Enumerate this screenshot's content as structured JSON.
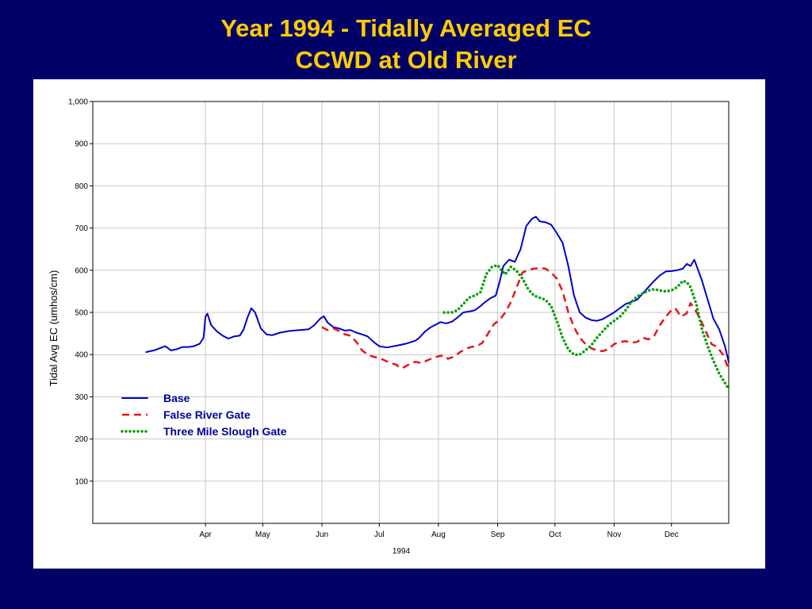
{
  "title": {
    "line1": "Year 1994 - Tidally Averaged EC",
    "line2": "CCWD at Old River"
  },
  "colors": {
    "background": "#000066",
    "title": "#FFCC00",
    "legend_text": "#000099",
    "grid": "#c8c8c8"
  },
  "chart_data": {
    "type": "line",
    "title": "",
    "xlabel": "1994",
    "ylabel": "Tidal Avg EC (umhos/cm)",
    "xlim": [
      "1994-02-01",
      "1994-12-31"
    ],
    "ylim": [
      0,
      1000
    ],
    "yticks": [
      100,
      200,
      300,
      400,
      500,
      600,
      700,
      800,
      900,
      1000
    ],
    "yticklabels": [
      "100",
      "200",
      "300",
      "400",
      "500",
      "600",
      "700",
      "800",
      "900",
      "1,000"
    ],
    "xticks": [
      "1994-04-01",
      "1994-05-01",
      "1994-06-01",
      "1994-07-01",
      "1994-08-01",
      "1994-09-01",
      "1994-10-01",
      "1994-11-01",
      "1994-12-01"
    ],
    "xticklabels": [
      "Apr",
      "May",
      "Jun",
      "Jul",
      "Aug",
      "Sep",
      "Oct",
      "Nov",
      "Dec"
    ],
    "grid": true,
    "legend_position": "lower-left",
    "series": [
      {
        "name": "Base",
        "color": "#0000CC",
        "dash": "solid",
        "points": [
          [
            "1994-03-01",
            406
          ],
          [
            "1994-03-05",
            410
          ],
          [
            "1994-03-08",
            415
          ],
          [
            "1994-03-11",
            420
          ],
          [
            "1994-03-14",
            410
          ],
          [
            "1994-03-17",
            413
          ],
          [
            "1994-03-20",
            418
          ],
          [
            "1994-03-23",
            418
          ],
          [
            "1994-03-26",
            420
          ],
          [
            "1994-03-29",
            426
          ],
          [
            "1994-03-31",
            440
          ],
          [
            "1994-04-01",
            490
          ],
          [
            "1994-04-02",
            497
          ],
          [
            "1994-04-04",
            470
          ],
          [
            "1994-04-07",
            455
          ],
          [
            "1994-04-10",
            445
          ],
          [
            "1994-04-13",
            438
          ],
          [
            "1994-04-16",
            443
          ],
          [
            "1994-04-19",
            445
          ],
          [
            "1994-04-21",
            460
          ],
          [
            "1994-04-23",
            488
          ],
          [
            "1994-04-25",
            510
          ],
          [
            "1994-04-27",
            500
          ],
          [
            "1994-04-30",
            462
          ],
          [
            "1994-05-03",
            448
          ],
          [
            "1994-05-06",
            446
          ],
          [
            "1994-05-10",
            452
          ],
          [
            "1994-05-15",
            456
          ],
          [
            "1994-05-20",
            458
          ],
          [
            "1994-05-25",
            460
          ],
          [
            "1994-05-28",
            470
          ],
          [
            "1994-05-31",
            485
          ],
          [
            "1994-06-02",
            491
          ],
          [
            "1994-06-04",
            476
          ],
          [
            "1994-06-07",
            465
          ],
          [
            "1994-06-10",
            462
          ],
          [
            "1994-06-13",
            457
          ],
          [
            "1994-06-16",
            458
          ],
          [
            "1994-06-19",
            452
          ],
          [
            "1994-06-22",
            448
          ],
          [
            "1994-06-25",
            443
          ],
          [
            "1994-06-28",
            430
          ],
          [
            "1994-07-01",
            420
          ],
          [
            "1994-07-05",
            417
          ],
          [
            "1994-07-10",
            421
          ],
          [
            "1994-07-15",
            426
          ],
          [
            "1994-07-20",
            433
          ],
          [
            "1994-07-22",
            440
          ],
          [
            "1994-07-25",
            455
          ],
          [
            "1994-07-28",
            465
          ],
          [
            "1994-07-31",
            472
          ],
          [
            "1994-08-02",
            477
          ],
          [
            "1994-08-05",
            474
          ],
          [
            "1994-08-08",
            478
          ],
          [
            "1994-08-11",
            488
          ],
          [
            "1994-08-14",
            500
          ],
          [
            "1994-08-17",
            502
          ],
          [
            "1994-08-20",
            505
          ],
          [
            "1994-08-23",
            515
          ],
          [
            "1994-08-25",
            523
          ],
          [
            "1994-08-28",
            533
          ],
          [
            "1994-08-31",
            540
          ],
          [
            "1994-09-02",
            572
          ],
          [
            "1994-09-04",
            610
          ],
          [
            "1994-09-07",
            625
          ],
          [
            "1994-09-10",
            620
          ],
          [
            "1994-09-13",
            650
          ],
          [
            "1994-09-16",
            705
          ],
          [
            "1994-09-19",
            722
          ],
          [
            "1994-09-21",
            727
          ],
          [
            "1994-09-23",
            716
          ],
          [
            "1994-09-26",
            714
          ],
          [
            "1994-09-29",
            708
          ],
          [
            "1994-10-02",
            688
          ],
          [
            "1994-10-05",
            665
          ],
          [
            "1994-10-08",
            610
          ],
          [
            "1994-10-11",
            540
          ],
          [
            "1994-10-14",
            500
          ],
          [
            "1994-10-17",
            488
          ],
          [
            "1994-10-20",
            482
          ],
          [
            "1994-10-23",
            480
          ],
          [
            "1994-10-26",
            484
          ],
          [
            "1994-10-29",
            492
          ],
          [
            "1994-11-01",
            500
          ],
          [
            "1994-11-04",
            510
          ],
          [
            "1994-11-07",
            520
          ],
          [
            "1994-11-10",
            525
          ],
          [
            "1994-11-13",
            530
          ],
          [
            "1994-11-16",
            545
          ],
          [
            "1994-11-19",
            560
          ],
          [
            "1994-11-22",
            575
          ],
          [
            "1994-11-25",
            588
          ],
          [
            "1994-11-28",
            597
          ],
          [
            "1994-12-01",
            598
          ],
          [
            "1994-12-04",
            600
          ],
          [
            "1994-12-07",
            604
          ],
          [
            "1994-12-09",
            615
          ],
          [
            "1994-12-11",
            610
          ],
          [
            "1994-12-13",
            625
          ],
          [
            "1994-12-15",
            600
          ],
          [
            "1994-12-17",
            575
          ],
          [
            "1994-12-20",
            530
          ],
          [
            "1994-12-23",
            485
          ],
          [
            "1994-12-26",
            460
          ],
          [
            "1994-12-29",
            420
          ],
          [
            "1994-12-31",
            382
          ]
        ]
      },
      {
        "name": "False River Gate",
        "color": "#E8141E",
        "dash": "dashed",
        "points": [
          [
            "1994-06-01",
            465
          ],
          [
            "1994-06-04",
            458
          ],
          [
            "1994-06-07",
            462
          ],
          [
            "1994-06-10",
            456
          ],
          [
            "1994-06-13",
            448
          ],
          [
            "1994-06-16",
            445
          ],
          [
            "1994-06-19",
            430
          ],
          [
            "1994-06-22",
            410
          ],
          [
            "1994-06-25",
            400
          ],
          [
            "1994-06-28",
            395
          ],
          [
            "1994-07-01",
            392
          ],
          [
            "1994-07-04",
            386
          ],
          [
            "1994-07-07",
            380
          ],
          [
            "1994-07-10",
            376
          ],
          [
            "1994-07-12",
            368
          ],
          [
            "1994-07-14",
            370
          ],
          [
            "1994-07-17",
            378
          ],
          [
            "1994-07-20",
            383
          ],
          [
            "1994-07-23",
            380
          ],
          [
            "1994-07-26",
            386
          ],
          [
            "1994-07-29",
            392
          ],
          [
            "1994-08-01",
            396
          ],
          [
            "1994-08-04",
            398
          ],
          [
            "1994-08-06",
            390
          ],
          [
            "1994-08-09",
            395
          ],
          [
            "1994-08-12",
            405
          ],
          [
            "1994-08-15",
            413
          ],
          [
            "1994-08-18",
            418
          ],
          [
            "1994-08-21",
            420
          ],
          [
            "1994-08-24",
            428
          ],
          [
            "1994-08-27",
            450
          ],
          [
            "1994-08-30",
            472
          ],
          [
            "1994-09-02",
            482
          ],
          [
            "1994-09-05",
            500
          ],
          [
            "1994-09-08",
            525
          ],
          [
            "1994-09-11",
            560
          ],
          [
            "1994-09-14",
            595
          ],
          [
            "1994-09-17",
            600
          ],
          [
            "1994-09-20",
            604
          ],
          [
            "1994-09-23",
            605
          ],
          [
            "1994-09-26",
            604
          ],
          [
            "1994-09-29",
            595
          ],
          [
            "1994-10-02",
            580
          ],
          [
            "1994-10-05",
            550
          ],
          [
            "1994-10-08",
            500
          ],
          [
            "1994-10-11",
            465
          ],
          [
            "1994-10-14",
            440
          ],
          [
            "1994-10-17",
            425
          ],
          [
            "1994-10-20",
            415
          ],
          [
            "1994-10-23",
            410
          ],
          [
            "1994-10-26",
            408
          ],
          [
            "1994-10-29",
            413
          ],
          [
            "1994-11-01",
            425
          ],
          [
            "1994-11-04",
            430
          ],
          [
            "1994-11-07",
            432
          ],
          [
            "1994-11-10",
            428
          ],
          [
            "1994-11-13",
            430
          ],
          [
            "1994-11-16",
            440
          ],
          [
            "1994-11-19",
            436
          ],
          [
            "1994-11-22",
            445
          ],
          [
            "1994-11-25",
            470
          ],
          [
            "1994-11-28",
            490
          ],
          [
            "1994-12-01",
            505
          ],
          [
            "1994-12-03",
            510
          ],
          [
            "1994-12-06",
            490
          ],
          [
            "1994-12-09",
            498
          ],
          [
            "1994-12-11",
            522
          ],
          [
            "1994-12-13",
            510
          ],
          [
            "1994-12-16",
            485
          ],
          [
            "1994-12-19",
            455
          ],
          [
            "1994-12-22",
            425
          ],
          [
            "1994-12-25",
            418
          ],
          [
            "1994-12-28",
            400
          ],
          [
            "1994-12-31",
            365
          ]
        ]
      },
      {
        "name": "Three Mile Slough Gate",
        "color": "#00A000",
        "dash": "dotted",
        "points": [
          [
            "1994-08-04",
            500
          ],
          [
            "1994-08-08",
            500
          ],
          [
            "1994-08-11",
            505
          ],
          [
            "1994-08-14",
            520
          ],
          [
            "1994-08-17",
            535
          ],
          [
            "1994-08-20",
            540
          ],
          [
            "1994-08-23",
            548
          ],
          [
            "1994-08-26",
            590
          ],
          [
            "1994-08-29",
            608
          ],
          [
            "1994-09-01",
            612
          ],
          [
            "1994-09-03",
            600
          ],
          [
            "1994-09-05",
            590
          ],
          [
            "1994-09-08",
            608
          ],
          [
            "1994-09-11",
            598
          ],
          [
            "1994-09-14",
            580
          ],
          [
            "1994-09-17",
            555
          ],
          [
            "1994-09-20",
            540
          ],
          [
            "1994-09-23",
            535
          ],
          [
            "1994-09-26",
            530
          ],
          [
            "1994-09-29",
            515
          ],
          [
            "1994-10-02",
            480
          ],
          [
            "1994-10-05",
            440
          ],
          [
            "1994-10-08",
            412
          ],
          [
            "1994-10-11",
            400
          ],
          [
            "1994-10-14",
            400
          ],
          [
            "1994-10-17",
            410
          ],
          [
            "1994-10-20",
            422
          ],
          [
            "1994-10-23",
            440
          ],
          [
            "1994-10-26",
            455
          ],
          [
            "1994-10-29",
            470
          ],
          [
            "1994-11-01",
            480
          ],
          [
            "1994-11-04",
            490
          ],
          [
            "1994-11-07",
            505
          ],
          [
            "1994-11-10",
            525
          ],
          [
            "1994-11-13",
            538
          ],
          [
            "1994-11-16",
            545
          ],
          [
            "1994-11-19",
            552
          ],
          [
            "1994-11-22",
            555
          ],
          [
            "1994-11-25",
            552
          ],
          [
            "1994-11-28",
            550
          ],
          [
            "1994-12-01",
            552
          ],
          [
            "1994-12-04",
            560
          ],
          [
            "1994-12-07",
            575
          ],
          [
            "1994-12-09",
            572
          ],
          [
            "1994-12-11",
            560
          ],
          [
            "1994-12-14",
            520
          ],
          [
            "1994-12-17",
            460
          ],
          [
            "1994-12-20",
            420
          ],
          [
            "1994-12-23",
            385
          ],
          [
            "1994-12-26",
            355
          ],
          [
            "1994-12-29",
            333
          ],
          [
            "1994-12-31",
            318
          ]
        ]
      }
    ]
  }
}
